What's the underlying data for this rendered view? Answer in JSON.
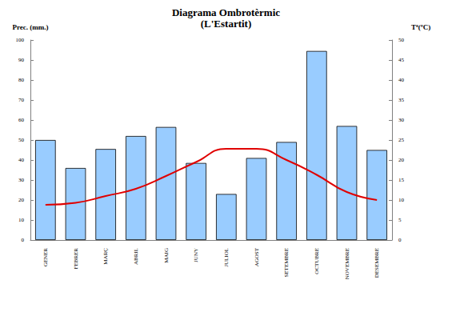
{
  "chart_data": {
    "type": "bar",
    "title": "Diagrama Ombrotèrmic",
    "subtitle": "(L'Estartit)",
    "y_label": "Prec. (mm.)",
    "y2_label": "Tª(ºC)",
    "categories": [
      "GENER",
      "FEBRER",
      "MARÇ",
      "ABRIL",
      "MAIG",
      "JUNY",
      "JULIOL",
      "AGOST",
      "SETEMBRE",
      "OCTUBRE",
      "NOVEMBRE",
      "DESEMBRE"
    ],
    "series": [
      {
        "type": "bar",
        "color": "#99ccff",
        "values": [
          50,
          36,
          45.5,
          52,
          56.5,
          38.5,
          23,
          41,
          49,
          94.5,
          57,
          45
        ]
      },
      {
        "type": "line",
        "color": "#e00000",
        "axis": "y2",
        "marker": "none",
        "line_style": "solid",
        "values": [
          8.8,
          9.3,
          11,
          12.8,
          16,
          19.5,
          22.8,
          22.8,
          20,
          16.3,
          12,
          10
        ]
      }
    ],
    "ylim": [
      0,
      100
    ],
    "yticks": [
      0,
      10,
      20,
      30,
      40,
      50,
      60,
      70,
      80,
      90,
      100
    ],
    "y2lim": [
      0,
      50
    ],
    "y2ticks": [
      0,
      5,
      10,
      15,
      20,
      25,
      30,
      35,
      40,
      45,
      50
    ],
    "grid": false
  }
}
